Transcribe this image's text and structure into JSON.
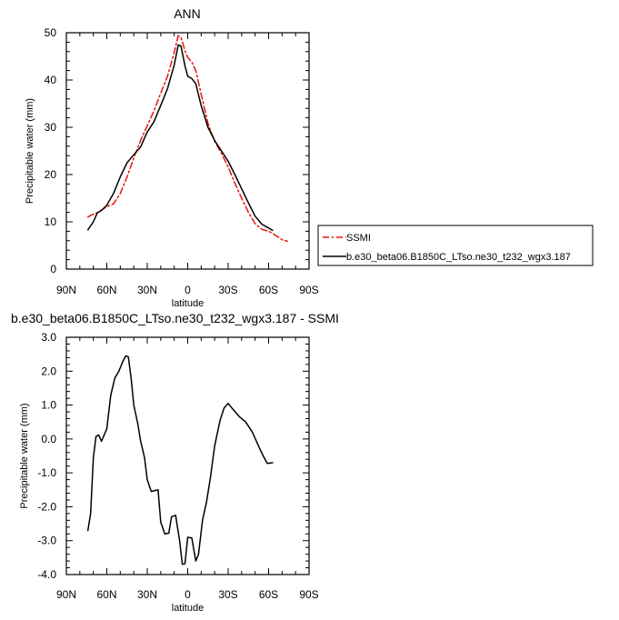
{
  "chart_data": [
    {
      "type": "line",
      "title": "ANN",
      "xlabel": "latitude",
      "ylabel": "Precipitable water (mm)",
      "xlim": [
        90,
        -90
      ],
      "ylim": [
        0,
        50
      ],
      "x_ticks": [
        90,
        60,
        30,
        0,
        -30,
        -60,
        -90
      ],
      "x_tick_labels": [
        "90N",
        "60N",
        "30N",
        "0",
        "30S",
        "60S",
        "90S"
      ],
      "y_ticks": [
        0,
        10,
        20,
        30,
        40,
        50
      ],
      "y_tick_labels": [
        "0",
        "10",
        "20",
        "30",
        "40",
        "50"
      ],
      "grid": false,
      "legend": "right, outside plot",
      "colors": {
        "SSMI": "#e8140c",
        "model": "#000000"
      },
      "series": [
        {
          "name": "SSMI",
          "style": "dashed",
          "color": "#e8140c",
          "x": [
            74,
            71,
            68,
            65,
            60,
            55,
            50,
            45,
            40,
            35,
            30,
            25,
            20,
            15,
            10,
            7,
            5,
            2,
            0,
            -3,
            -6,
            -10,
            -15,
            -20,
            -25,
            -30,
            -35,
            -40,
            -45,
            -50,
            -55,
            -60,
            -65,
            -70,
            -74
          ],
          "y": [
            11,
            11.5,
            11.8,
            12.3,
            13.2,
            13.8,
            16,
            19.5,
            23.5,
            27.2,
            30.3,
            33.5,
            37.2,
            40.8,
            45.8,
            49.4,
            49,
            46.2,
            44.8,
            43.8,
            42,
            37,
            30.8,
            27,
            24.5,
            21.6,
            18.2,
            15,
            12,
            9.6,
            8.4,
            8,
            7.2,
            6.2,
            5.9
          ]
        },
        {
          "name": "b.e30_beta06.B1850C_LTso.ne30_t232_wgx3.187",
          "style": "solid",
          "color": "#000000",
          "x": [
            74,
            70,
            67,
            64,
            60,
            55,
            50,
            45,
            40,
            35,
            30,
            25,
            20,
            15,
            10,
            7,
            5,
            2,
            0,
            -3,
            -6,
            -10,
            -15,
            -20,
            -25,
            -30,
            -35,
            -40,
            -45,
            -50,
            -55,
            -60,
            -63
          ],
          "y": [
            8.3,
            10,
            11.9,
            12.4,
            13.5,
            16,
            19.5,
            22.5,
            24.2,
            25.8,
            29,
            31.2,
            34.6,
            38.2,
            43.2,
            47.4,
            47.2,
            43,
            40.8,
            40.3,
            39.2,
            34.6,
            30,
            27.2,
            25,
            22.8,
            20,
            17,
            14,
            11.2,
            9.5,
            8.7,
            8.2
          ]
        }
      ]
    },
    {
      "type": "line",
      "title": "b.e30_beta06.B1850C_LTso.ne30_t232_wgx3.187 - SSMI",
      "xlabel": "latitude",
      "ylabel": "Precipitable water (mm)",
      "xlim": [
        90,
        -90
      ],
      "ylim": [
        -4.0,
        3.0
      ],
      "x_ticks": [
        90,
        60,
        30,
        0,
        -30,
        -60,
        -90
      ],
      "x_tick_labels": [
        "90N",
        "60N",
        "30N",
        "0",
        "30S",
        "60S",
        "90S"
      ],
      "y_ticks": [
        3.0,
        2.0,
        1.0,
        0.0,
        -1.0,
        -2.0,
        -3.0,
        -4.0
      ],
      "y_tick_labels": [
        "3.0",
        "2.0",
        "1.0",
        "0.0",
        "-1.0",
        "-2.0",
        "-3.0",
        "-4.0"
      ],
      "grid": false,
      "series": [
        {
          "style": "solid",
          "color": "#000000",
          "x": [
            74,
            72,
            70,
            68,
            66,
            64,
            60,
            57,
            54,
            51,
            48,
            46,
            44,
            42,
            40,
            37,
            35,
            32,
            30,
            27,
            24,
            22,
            20,
            17,
            14,
            12,
            9,
            6,
            4,
            2,
            0,
            -3,
            -6,
            -8,
            -11,
            -14,
            -17,
            -20,
            -24,
            -27,
            -30,
            -33,
            -38,
            -43,
            -48,
            -53,
            -56,
            -59,
            -63
          ],
          "y": [
            -2.7,
            -2.2,
            -0.55,
            0.07,
            0.12,
            -0.07,
            0.3,
            1.3,
            1.8,
            2.0,
            2.3,
            2.45,
            2.42,
            1.8,
            1.0,
            0.45,
            -0.05,
            -0.55,
            -1.2,
            -1.55,
            -1.52,
            -1.5,
            -2.45,
            -2.8,
            -2.78,
            -2.3,
            -2.25,
            -3.0,
            -3.7,
            -3.68,
            -2.9,
            -2.92,
            -3.6,
            -3.4,
            -2.4,
            -1.85,
            -1.1,
            -0.2,
            0.55,
            0.92,
            1.05,
            0.9,
            0.67,
            0.5,
            0.2,
            -0.25,
            -0.5,
            -0.72,
            -0.7
          ]
        }
      ]
    }
  ]
}
